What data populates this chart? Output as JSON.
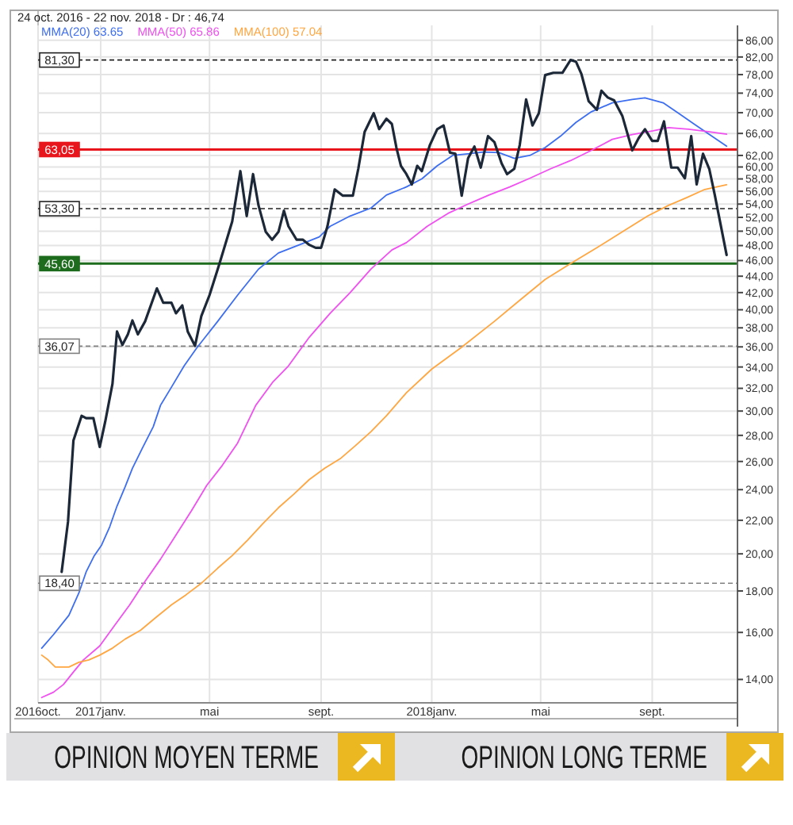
{
  "chart_data": {
    "type": "line",
    "title": "24 oct. 2016 - 22 nov. 2018 - Dr : 46,74",
    "legend": "top left",
    "grid": true,
    "log": true,
    "xlim": [
      "2016-10-24",
      "2018-12-04"
    ],
    "xticks": [
      {
        "value": "2016-10-24",
        "label": "2016oct."
      },
      {
        "value": "2017-01-01",
        "label": "2017janv."
      },
      {
        "value": "2017-05-01",
        "label": "mai"
      },
      {
        "value": "2017-09-01",
        "label": "sept."
      },
      {
        "value": "2018-01-01",
        "label": "2018janv."
      },
      {
        "value": "2018-05-01",
        "label": "mai"
      },
      {
        "value": "2018-09-01",
        "label": "sept."
      }
    ],
    "ylim": [
      13.1,
      89.7
    ],
    "yticks": [
      {
        "value": 14,
        "label": "14,00"
      },
      {
        "value": 16,
        "label": "16,00"
      },
      {
        "value": 18,
        "label": "18,00"
      },
      {
        "value": 20,
        "label": "20,00"
      },
      {
        "value": 22,
        "label": "22,00"
      },
      {
        "value": 24,
        "label": "24,00"
      },
      {
        "value": 26,
        "label": "26,00"
      },
      {
        "value": 28,
        "label": "28,00"
      },
      {
        "value": 30,
        "label": "30,00"
      },
      {
        "value": 32,
        "label": "32,00"
      },
      {
        "value": 34,
        "label": "34,00"
      },
      {
        "value": 36,
        "label": "36,00"
      },
      {
        "value": 38,
        "label": "38,00"
      },
      {
        "value": 40,
        "label": "40,00"
      },
      {
        "value": 42,
        "label": "42,00"
      },
      {
        "value": 44,
        "label": "44,00"
      },
      {
        "value": 46,
        "label": "46,00"
      },
      {
        "value": 48,
        "label": "48,00"
      },
      {
        "value": 50,
        "label": "50,00"
      },
      {
        "value": 52,
        "label": "52,00"
      },
      {
        "value": 54,
        "label": "54,00"
      },
      {
        "value": 56,
        "label": "56,00"
      },
      {
        "value": 58,
        "label": "58,00"
      },
      {
        "value": 60,
        "label": "60,00"
      },
      {
        "value": 62,
        "label": "62,00"
      },
      {
        "value": 66,
        "label": "66,00"
      },
      {
        "value": 70,
        "label": "70,00"
      },
      {
        "value": 74,
        "label": "74,00"
      },
      {
        "value": 78,
        "label": "78,00"
      },
      {
        "value": 82,
        "label": "82,00"
      },
      {
        "value": 86,
        "label": "86,00"
      }
    ],
    "series": [
      {
        "name": "MMA(20) 63.65",
        "color": "#3d6ef0",
        "x": [
          "2016-10-28",
          "2016-11-10",
          "2016-11-27",
          "2016-12-08",
          "2016-12-16",
          "2016-12-25",
          "2017-01-02",
          "2017-01-11",
          "2017-01-19",
          "2017-01-28",
          "2017-02-05",
          "2017-02-16",
          "2017-02-28",
          "2017-03-08",
          "2017-03-20",
          "2017-04-03",
          "2017-04-17",
          "2017-05-10",
          "2017-06-01",
          "2017-06-24",
          "2017-07-16",
          "2017-08-08",
          "2017-08-30",
          "2017-09-11",
          "2017-10-03",
          "2017-10-26",
          "2017-11-12",
          "2017-12-04",
          "2017-12-21",
          "2018-01-07",
          "2018-01-24",
          "2018-02-10",
          "2018-02-27",
          "2018-03-16",
          "2018-04-02",
          "2018-04-19",
          "2018-05-06",
          "2018-05-23",
          "2018-06-09",
          "2018-06-26",
          "2018-07-19",
          "2018-08-10",
          "2018-08-24",
          "2018-09-13",
          "2018-09-30",
          "2018-10-17",
          "2018-11-03",
          "2018-11-22"
        ],
        "values": [
          15.3,
          15.9,
          16.8,
          17.9,
          19.0,
          19.9,
          20.5,
          21.6,
          22.9,
          24.2,
          25.5,
          27.0,
          28.7,
          30.5,
          32.1,
          34.1,
          35.9,
          38.7,
          41.7,
          44.9,
          47.0,
          48.1,
          49.2,
          50.7,
          52.2,
          53.4,
          55.4,
          56.7,
          58.0,
          60.2,
          62.0,
          62.3,
          62.6,
          62.5,
          61.5,
          62.0,
          63.4,
          65.5,
          68.1,
          70.2,
          72.0,
          72.7,
          73.0,
          72.0,
          69.9,
          67.8,
          65.8,
          63.65
        ]
      },
      {
        "name": "MMA(50) 65.86",
        "color": "#f050f0",
        "x": [
          "2016-10-28",
          "2016-11-10",
          "2016-11-21",
          "2016-12-02",
          "2016-12-13",
          "2016-12-31",
          "2017-01-16",
          "2017-02-02",
          "2017-02-19",
          "2017-03-08",
          "2017-03-25",
          "2017-04-11",
          "2017-04-28",
          "2017-05-15",
          "2017-06-01",
          "2017-06-21",
          "2017-07-10",
          "2017-07-27",
          "2017-08-19",
          "2017-09-11",
          "2017-10-03",
          "2017-10-26",
          "2017-11-18",
          "2017-12-04",
          "2017-12-27",
          "2018-01-19",
          "2018-02-10",
          "2018-03-05",
          "2018-03-28",
          "2018-04-19",
          "2018-05-12",
          "2018-06-03",
          "2018-06-26",
          "2018-07-19",
          "2018-08-10",
          "2018-09-02",
          "2018-09-19",
          "2018-10-11",
          "2018-11-03",
          "2018-11-22"
        ],
        "values": [
          13.3,
          13.5,
          13.8,
          14.3,
          14.8,
          15.4,
          16.3,
          17.3,
          18.5,
          19.7,
          21.1,
          22.6,
          24.3,
          25.7,
          27.4,
          30.5,
          32.6,
          34.1,
          37.0,
          39.6,
          42.0,
          44.9,
          47.4,
          48.4,
          50.7,
          52.6,
          54.0,
          55.4,
          56.7,
          58.1,
          59.7,
          61.1,
          62.9,
          64.9,
          65.8,
          66.5,
          67.1,
          66.8,
          66.3,
          65.86
        ]
      },
      {
        "name": "MMA(100) 57.04",
        "color": "#ffa640",
        "x": [
          "2016-10-28",
          "2016-11-04",
          "2016-11-12",
          "2016-11-27",
          "2016-12-08",
          "2016-12-19",
          "2016-12-31",
          "2017-01-14",
          "2017-01-28",
          "2017-02-14",
          "2017-03-03",
          "2017-03-20",
          "2017-04-05",
          "2017-04-22",
          "2017-05-10",
          "2017-05-26",
          "2017-06-12",
          "2017-06-29",
          "2017-07-16",
          "2017-08-02",
          "2017-08-19",
          "2017-09-05",
          "2017-09-22",
          "2017-10-09",
          "2017-10-26",
          "2017-11-12",
          "2017-12-04",
          "2018-01-01",
          "2018-02-02",
          "2018-03-11",
          "2018-04-08",
          "2018-05-06",
          "2018-06-03",
          "2018-07-02",
          "2018-07-30",
          "2018-08-27",
          "2018-09-19",
          "2018-10-09",
          "2018-10-29",
          "2018-11-22"
        ],
        "values": [
          15.0,
          14.8,
          14.5,
          14.5,
          14.7,
          14.8,
          15.0,
          15.3,
          15.7,
          16.1,
          16.7,
          17.3,
          17.8,
          18.4,
          19.2,
          19.9,
          20.8,
          21.8,
          22.8,
          23.7,
          24.7,
          25.5,
          26.2,
          27.2,
          28.3,
          29.6,
          31.6,
          33.8,
          35.9,
          38.7,
          41.1,
          43.6,
          45.6,
          47.7,
          49.9,
          52.2,
          53.8,
          55.0,
          56.3,
          57.04
        ]
      },
      {
        "color": "#1c2838",
        "x": [
          "2016-11-19",
          "2016-11-26",
          "2016-12-02",
          "2016-12-11",
          "2016-12-16",
          "2016-12-24",
          "2016-12-31",
          "2017-01-06",
          "2017-01-14",
          "2017-01-19",
          "2017-01-25",
          "2017-01-31",
          "2017-02-05",
          "2017-02-11",
          "2017-02-19",
          "2017-03-04",
          "2017-03-11",
          "2017-03-20",
          "2017-03-25",
          "2017-04-01",
          "2017-04-07",
          "2017-04-15",
          "2017-04-22",
          "2017-05-01",
          "2017-05-12",
          "2017-05-26",
          "2017-06-04",
          "2017-06-11",
          "2017-06-18",
          "2017-06-24",
          "2017-07-02",
          "2017-07-09",
          "2017-07-16",
          "2017-07-22",
          "2017-07-27",
          "2017-08-05",
          "2017-08-12",
          "2017-08-19",
          "2017-08-26",
          "2017-09-01",
          "2017-09-08",
          "2017-09-16",
          "2017-09-25",
          "2017-10-06",
          "2017-10-12",
          "2017-10-19",
          "2017-10-29",
          "2017-11-04",
          "2017-11-12",
          "2017-11-18",
          "2017-11-23",
          "2017-11-28",
          "2017-12-04",
          "2017-12-10",
          "2017-12-16",
          "2017-12-21",
          "2017-12-30",
          "2018-01-07",
          "2018-01-14",
          "2018-01-21",
          "2018-01-27",
          "2018-02-03",
          "2018-02-10",
          "2018-02-17",
          "2018-02-24",
          "2018-03-04",
          "2018-03-11",
          "2018-03-19",
          "2018-03-25",
          "2018-04-02",
          "2018-04-08",
          "2018-04-15",
          "2018-04-22",
          "2018-04-29",
          "2018-05-06",
          "2018-05-15",
          "2018-05-25",
          "2018-06-03",
          "2018-06-09",
          "2018-06-15",
          "2018-06-23",
          "2018-07-02",
          "2018-07-07",
          "2018-07-14",
          "2018-07-21",
          "2018-07-30",
          "2018-08-10",
          "2018-08-17",
          "2018-08-24",
          "2018-09-01",
          "2018-09-07",
          "2018-09-14",
          "2018-09-22",
          "2018-09-29",
          "2018-10-07",
          "2018-10-14",
          "2018-10-20",
          "2018-10-27",
          "2018-11-03",
          "2018-11-09",
          "2018-11-22"
        ],
        "values": [
          19.0,
          21.9,
          27.6,
          29.6,
          29.4,
          29.4,
          27.1,
          29.1,
          32.4,
          37.6,
          36.2,
          37.3,
          38.8,
          37.3,
          38.7,
          42.5,
          40.8,
          40.8,
          39.6,
          40.5,
          37.6,
          36.1,
          39.3,
          41.7,
          45.6,
          51.4,
          59.3,
          52.2,
          58.8,
          53.8,
          49.9,
          48.8,
          49.9,
          53.0,
          50.7,
          48.8,
          48.8,
          48.1,
          47.7,
          47.7,
          50.7,
          56.3,
          55.3,
          55.3,
          59.7,
          66.3,
          69.9,
          66.8,
          68.8,
          67.8,
          63.4,
          60.2,
          58.8,
          57.1,
          60.2,
          59.3,
          63.9,
          66.8,
          67.5,
          62.5,
          62.3,
          55.3,
          61.5,
          63.6,
          59.9,
          65.5,
          64.4,
          60.6,
          58.8,
          59.7,
          63.9,
          72.7,
          67.5,
          69.9,
          77.9,
          78.4,
          78.4,
          81.3,
          80.9,
          78.1,
          72.3,
          70.6,
          74.5,
          73.1,
          72.5,
          69.4,
          62.9,
          65.1,
          66.8,
          64.6,
          64.6,
          68.3,
          59.9,
          59.9,
          58.1,
          65.5,
          57.1,
          62.3,
          59.6,
          55.4,
          46.74
        ]
      }
    ],
    "ref_lines": [
      {
        "axis": "y",
        "value": 81.3,
        "label": "81,30",
        "color": "#222222",
        "line_style": "dashed"
      },
      {
        "axis": "y",
        "value": 63.05,
        "label": "63,05",
        "color": "#e8161c",
        "line_style": "solid"
      },
      {
        "axis": "y",
        "value": 53.3,
        "label": "53,30",
        "color": "#222222",
        "line_style": "dashed"
      },
      {
        "axis": "y",
        "value": 45.6,
        "label": "45,60",
        "color": "#1d6b1d",
        "line_style": "solid"
      },
      {
        "axis": "y",
        "value": 36.07,
        "label": "36,07",
        "color": "#808080",
        "line_style": "dashed"
      },
      {
        "axis": "y",
        "value": 18.4,
        "label": "18,40",
        "color": "#808080",
        "line_style": "dashed"
      }
    ],
    "annotations": [
      "OPINION MOYEN TERME",
      "OPINION LONG TERME"
    ]
  }
}
